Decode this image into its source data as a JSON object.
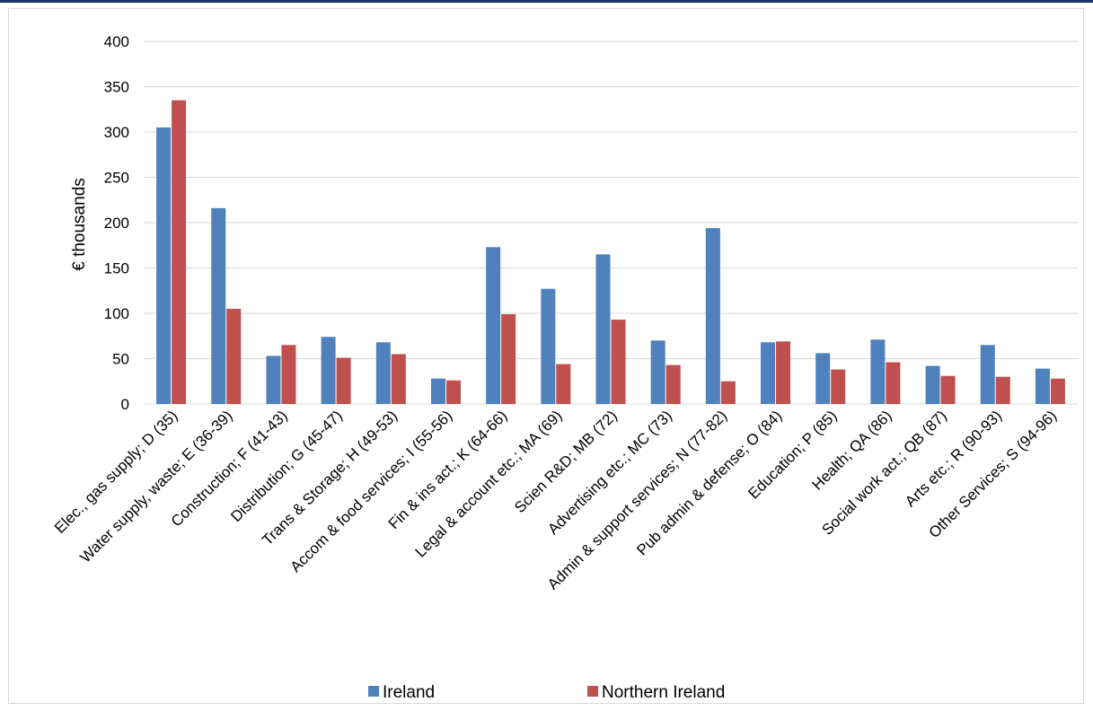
{
  "chart_data": {
    "type": "bar",
    "title": "",
    "xlabel": "",
    "ylabel": "€ thousands",
    "ylim": [
      0,
      400
    ],
    "yticks": [
      0,
      50,
      100,
      150,
      200,
      250,
      300,
      350,
      400
    ],
    "grid": true,
    "legend_position": "bottom",
    "categories": [
      "Elec., gas supply; D (35)",
      "Water supply, waste; E (36-39)",
      "Construction; F (41-43)",
      "Distribution; G (45-47)",
      "Trans & Storage; H (49-53)",
      "Accom & food services; I (55-56)",
      "Fin & ins act.; K (64-66)",
      "Legal & account etc.; MA (69)",
      "Scien R&D; MB (72)",
      "Advertising etc.; MC (73)",
      "Admin & support services; N (77-82)",
      "Pub admin & defense; O (84)",
      "Education; P (85)",
      "Health; QA (86)",
      "Social work act.; QB (87)",
      "Arts etc.; R (90-93)",
      "Other Services; S (94-96)"
    ],
    "series": [
      {
        "name": "Ireland",
        "color": "#4f81bd",
        "values": [
          305,
          216,
          53,
          74,
          68,
          28,
          173,
          127,
          165,
          70,
          194,
          68,
          56,
          71,
          42,
          65,
          39
        ]
      },
      {
        "name": "Northern Ireland",
        "color": "#c0504d",
        "values": [
          335,
          105,
          65,
          51,
          55,
          26,
          99,
          44,
          93,
          43,
          25,
          69,
          38,
          46,
          31,
          30,
          28
        ]
      }
    ]
  },
  "colors": {
    "top_border": "#17375e",
    "grid": "#d9d9d9",
    "frame": "#d9d9d9"
  }
}
